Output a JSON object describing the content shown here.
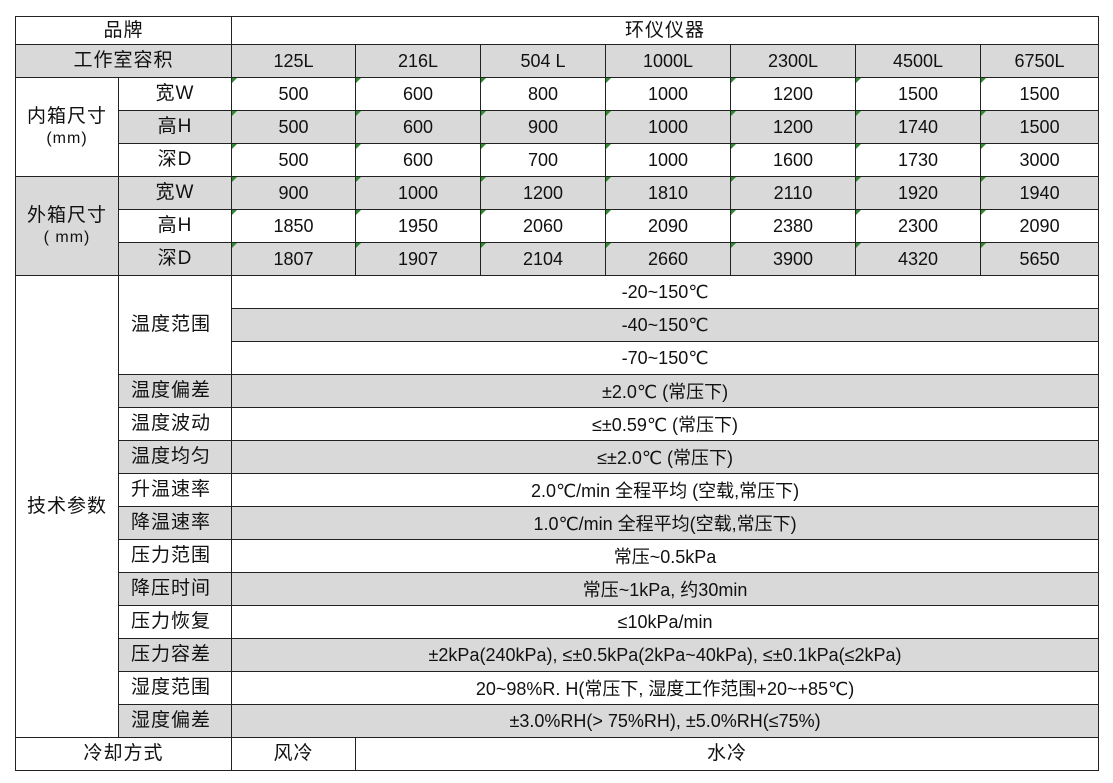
{
  "brand_label": "品牌",
  "brand_value": "环仪仪器",
  "volume_label": "工作室容积",
  "volumes": [
    "125L",
    "216L",
    "504 L",
    "1000L",
    "2300L",
    "4500L",
    "6750L"
  ],
  "inner": {
    "label": "内箱尺寸",
    "unit": "(mm)",
    "rows": [
      {
        "dim": "宽W",
        "values": [
          "500",
          "600",
          "800",
          "1000",
          "1200",
          "1500",
          "1500"
        ]
      },
      {
        "dim": "高H",
        "values": [
          "500",
          "600",
          "900",
          "1000",
          "1200",
          "1740",
          "1500"
        ]
      },
      {
        "dim": "深D",
        "values": [
          "500",
          "600",
          "700",
          "1000",
          "1600",
          "1730",
          "3000"
        ]
      }
    ]
  },
  "outer": {
    "label": "外箱尺寸",
    "unit": "( mm)",
    "rows": [
      {
        "dim": "宽W",
        "values": [
          "900",
          "1000",
          "1200",
          "1810",
          "2110",
          "1920",
          "1940"
        ]
      },
      {
        "dim": "高H",
        "values": [
          "1850",
          "1950",
          "2060",
          "2090",
          "2380",
          "2300",
          "2090"
        ]
      },
      {
        "dim": "深D",
        "values": [
          "1807",
          "1907",
          "2104",
          "2660",
          "3900",
          "4320",
          "5650"
        ]
      }
    ]
  },
  "tech": {
    "label": "技术参数",
    "temp_range_label": "温度范围",
    "temp_ranges": [
      "-20~150℃",
      "-40~150℃",
      "-70~150℃"
    ],
    "params": [
      {
        "name": "温度偏差",
        "value": "±2.0℃ (常压下)"
      },
      {
        "name": "温度波动",
        "value": "≤±0.59℃ (常压下)"
      },
      {
        "name": "温度均匀",
        "value": "≤±2.0℃ (常压下)"
      },
      {
        "name": "升温速率",
        "value": "2.0℃/min 全程平均 (空载,常压下)"
      },
      {
        "name": "降温速率",
        "value": "1.0℃/min 全程平均(空载,常压下)"
      },
      {
        "name": "压力范围",
        "value": "常压~0.5kPa"
      },
      {
        "name": "降压时间",
        "value": "常压~1kPa, 约30min"
      },
      {
        "name": "压力恢复",
        "value": "≤10kPa/min"
      },
      {
        "name": "压力容差",
        "value": "±2kPa(240kPa), ≤±0.5kPa(2kPa~40kPa), ≤±0.1kPa(≤2kPa)"
      },
      {
        "name": "湿度范围",
        "value": "20~98%R. H(常压下, 湿度工作范围+20~+85℃)"
      },
      {
        "name": "湿度偏差",
        "value": "±3.0%RH(> 75%RH), ±5.0%RH(≤75%)"
      }
    ]
  },
  "cooling": {
    "label": "冷却方式",
    "air": "风冷",
    "water": "水冷"
  },
  "colors": {
    "row_shade": "#d9d9d9",
    "marker": "#2e8b2e"
  }
}
